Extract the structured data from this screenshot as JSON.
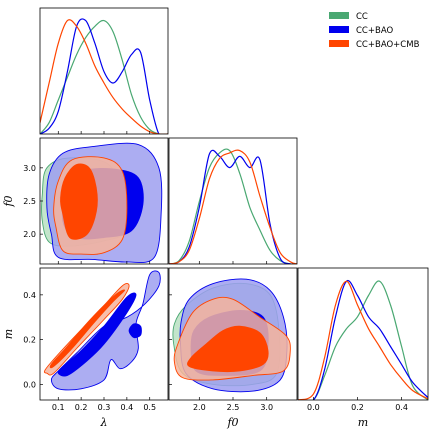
{
  "legend": {
    "items": [
      {
        "name": "CC",
        "color": "#4aa872"
      },
      {
        "name": "CC+BAO",
        "color": "#0000ee"
      },
      {
        "name": "CC+BAO+CMB",
        "color": "#ff4500"
      }
    ]
  },
  "axis_labels": {
    "lambda": "λ",
    "f0": "f0",
    "m": "m"
  },
  "chart_data": {
    "type": "corner",
    "parameters": [
      "λ",
      "f0",
      "m"
    ],
    "x_ticks": {
      "lambda": [
        "0.1",
        "0.2",
        "0.3",
        "0.4",
        "0.5"
      ],
      "f0": [
        "2.0",
        "2.5",
        "3.0"
      ],
      "m": [
        "0.0",
        "0.2",
        "0.4"
      ]
    },
    "y_ticks": {
      "f0": [
        "2.0",
        "2.5",
        "3.0"
      ],
      "m": [
        "0.0",
        "0.2",
        "0.4"
      ]
    },
    "ranges": {
      "lambda": [
        0.02,
        0.58
      ],
      "f0": [
        1.55,
        3.45
      ],
      "m": [
        -0.07,
        0.52
      ]
    },
    "marginals": {
      "lambda": {
        "x": [
          0.02,
          0.06,
          0.1,
          0.14,
          0.18,
          0.22,
          0.26,
          0.3,
          0.34,
          0.38,
          0.42,
          0.46,
          0.5,
          0.54,
          0.58
        ],
        "series": [
          {
            "name": "CC",
            "values": [
              0.0,
              0.1,
              0.3,
              0.5,
              0.7,
              0.85,
              0.95,
              1.0,
              0.9,
              0.65,
              0.35,
              0.15,
              0.04,
              0.0,
              0.0
            ]
          },
          {
            "name": "CC+BAO",
            "values": [
              0.0,
              0.05,
              0.2,
              0.55,
              0.95,
              1.0,
              0.8,
              0.55,
              0.45,
              0.55,
              0.7,
              0.72,
              0.3,
              0.0,
              0.0
            ]
          },
          {
            "name": "CC+BAO+CMB",
            "values": [
              0.1,
              0.45,
              0.8,
              1.0,
              0.95,
              0.8,
              0.6,
              0.45,
              0.32,
              0.22,
              0.14,
              0.07,
              0.02,
              0.0,
              0.0
            ]
          }
        ]
      },
      "f0": {
        "x": [
          1.55,
          1.7,
          1.85,
          2.0,
          2.15,
          2.3,
          2.45,
          2.6,
          2.75,
          2.9,
          3.05,
          3.2,
          3.35,
          3.45
        ],
        "series": [
          {
            "name": "CC",
            "values": [
              0.0,
              0.03,
              0.2,
              0.55,
              0.85,
              0.98,
              1.0,
              0.8,
              0.5,
              0.3,
              0.12,
              0.03,
              0.0,
              0.0
            ]
          },
          {
            "name": "CC+BAO",
            "values": [
              0.0,
              0.02,
              0.15,
              0.5,
              0.97,
              0.95,
              0.85,
              0.95,
              0.85,
              0.92,
              0.35,
              0.05,
              0.0,
              0.0
            ]
          },
          {
            "name": "CC+BAO+CMB",
            "values": [
              0.0,
              0.02,
              0.12,
              0.4,
              0.75,
              0.93,
              0.98,
              1.0,
              0.9,
              0.6,
              0.32,
              0.1,
              0.02,
              0.0
            ]
          }
        ]
      },
      "m": {
        "x": [
          -0.07,
          0.0,
          0.05,
          0.1,
          0.15,
          0.2,
          0.25,
          0.3,
          0.35,
          0.4,
          0.45,
          0.52
        ],
        "series": [
          {
            "name": "CC",
            "values": [
              0.0,
              0.0,
              0.2,
              0.45,
              0.6,
              0.7,
              0.88,
              1.0,
              0.8,
              0.45,
              0.12,
              0.0
            ]
          },
          {
            "name": "CC+BAO",
            "values": [
              0.0,
              0.0,
              0.25,
              0.7,
              1.0,
              0.88,
              0.7,
              0.6,
              0.45,
              0.3,
              0.15,
              0.02
            ]
          },
          {
            "name": "CC+BAO+CMB",
            "values": [
              0.0,
              0.05,
              0.35,
              0.8,
              1.0,
              0.8,
              0.6,
              0.45,
              0.3,
              0.18,
              0.08,
              0.01
            ]
          }
        ]
      }
    },
    "joint": {
      "lambda_f0": {
        "contours": [
          {
            "series": "CC",
            "level": "95%",
            "points": [
              [
                0.03,
                2.2
              ],
              [
                0.06,
                1.88
              ],
              [
                0.15,
                1.82
              ],
              [
                0.3,
                1.9
              ],
              [
                0.4,
                2.05
              ],
              [
                0.38,
                2.55
              ],
              [
                0.32,
                3.05
              ],
              [
                0.15,
                3.15
              ],
              [
                0.05,
                3.0
              ],
              [
                0.03,
                2.6
              ]
            ]
          },
          {
            "series": "CC+BAO",
            "level": "95%",
            "points": [
              [
                0.07,
                2.0
              ],
              [
                0.1,
                1.65
              ],
              [
                0.25,
                1.62
              ],
              [
                0.4,
                1.58
              ],
              [
                0.52,
                1.65
              ],
              [
                0.55,
                2.3
              ],
              [
                0.54,
                3.0
              ],
              [
                0.45,
                3.35
              ],
              [
                0.25,
                3.32
              ],
              [
                0.12,
                3.22
              ],
              [
                0.06,
                2.9
              ],
              [
                0.05,
                2.4
              ]
            ]
          },
          {
            "series": "CC+BAO",
            "level": "68%",
            "points": [
              [
                0.12,
                2.2
              ],
              [
                0.18,
                1.95
              ],
              [
                0.3,
                1.95
              ],
              [
                0.42,
                2.05
              ],
              [
                0.47,
                2.45
              ],
              [
                0.45,
                2.85
              ],
              [
                0.35,
                2.98
              ],
              [
                0.22,
                2.96
              ],
              [
                0.14,
                2.75
              ]
            ]
          },
          {
            "series": "CC+BAO+CMB",
            "level": "95%",
            "points": [
              [
                0.09,
                2.1
              ],
              [
                0.12,
                1.75
              ],
              [
                0.2,
                1.7
              ],
              [
                0.3,
                1.72
              ],
              [
                0.38,
                1.92
              ],
              [
                0.4,
                2.4
              ],
              [
                0.38,
                2.95
              ],
              [
                0.3,
                3.15
              ],
              [
                0.16,
                3.12
              ],
              [
                0.1,
                2.8
              ],
              [
                0.08,
                2.4
              ]
            ]
          },
          {
            "series": "CC+BAO+CMB",
            "level": "68%",
            "points": [
              [
                0.12,
                2.3
              ],
              [
                0.15,
                1.95
              ],
              [
                0.22,
                1.98
              ],
              [
                0.26,
                2.25
              ],
              [
                0.27,
                2.6
              ],
              [
                0.24,
                2.98
              ],
              [
                0.18,
                3.05
              ],
              [
                0.13,
                2.85
              ],
              [
                0.11,
                2.55
              ]
            ]
          }
        ]
      },
      "lambda_m": {
        "contours": [
          {
            "series": "CC+BAO",
            "level": "95%",
            "points": [
              [
                0.07,
                0.02
              ],
              [
                0.1,
                -0.02
              ],
              [
                0.2,
                -0.02
              ],
              [
                0.3,
                0.02
              ],
              [
                0.33,
                0.11
              ],
              [
                0.37,
                0.07
              ],
              [
                0.42,
                0.1
              ],
              [
                0.45,
                0.16
              ],
              [
                0.44,
                0.27
              ],
              [
                0.47,
                0.36
              ],
              [
                0.5,
                0.49
              ],
              [
                0.54,
                0.5
              ],
              [
                0.54,
                0.44
              ],
              [
                0.48,
                0.36
              ],
              [
                0.4,
                0.3
              ],
              [
                0.3,
                0.26
              ],
              [
                0.18,
                0.14
              ],
              [
                0.1,
                0.06
              ]
            ]
          },
          {
            "series": "CC+BAO",
            "level": "68%",
            "points": [
              [
                0.1,
                0.05
              ],
              [
                0.14,
                0.04
              ],
              [
                0.22,
                0.1
              ],
              [
                0.3,
                0.18
              ],
              [
                0.4,
                0.32
              ],
              [
                0.44,
                0.4
              ],
              [
                0.4,
                0.39
              ],
              [
                0.3,
                0.26
              ],
              [
                0.2,
                0.15
              ],
              [
                0.12,
                0.08
              ]
            ]
          },
          {
            "series": "CC+BAO",
            "level": "68%",
            "points": [
              [
                0.41,
                0.24
              ],
              [
                0.43,
                0.21
              ],
              [
                0.46,
                0.22
              ],
              [
                0.46,
                0.26
              ],
              [
                0.43,
                0.27
              ]
            ]
          },
          {
            "series": "CC+BAO+CMB",
            "level": "95%",
            "points": [
              [
                0.05,
                0.05
              ],
              [
                0.08,
                0.05
              ],
              [
                0.18,
                0.16
              ],
              [
                0.3,
                0.29
              ],
              [
                0.38,
                0.38
              ],
              [
                0.41,
                0.44
              ],
              [
                0.38,
                0.44
              ],
              [
                0.28,
                0.33
              ],
              [
                0.15,
                0.19
              ],
              [
                0.07,
                0.1
              ],
              [
                0.04,
                0.06
              ]
            ]
          },
          {
            "series": "CC+BAO+CMB",
            "level": "68%",
            "points": [
              [
                0.08,
                0.08
              ],
              [
                0.16,
                0.16
              ],
              [
                0.26,
                0.28
              ],
              [
                0.34,
                0.37
              ],
              [
                0.39,
                0.42
              ],
              [
                0.35,
                0.4
              ],
              [
                0.24,
                0.29
              ],
              [
                0.14,
                0.17
              ],
              [
                0.07,
                0.09
              ]
            ]
          }
        ]
      },
      "f0_m": {
        "contours": [
          {
            "series": "CC",
            "level": "95%",
            "points": [
              [
                1.62,
                0.18
              ],
              [
                1.75,
                0.05
              ],
              [
                2.2,
                0.0
              ],
              [
                2.8,
                0.0
              ],
              [
                3.15,
                0.05
              ],
              [
                3.18,
                0.25
              ],
              [
                3.05,
                0.4
              ],
              [
                2.7,
                0.45
              ],
              [
                2.2,
                0.43
              ],
              [
                1.8,
                0.35
              ],
              [
                1.63,
                0.27
              ]
            ]
          },
          {
            "series": "CC+BAO",
            "level": "95%",
            "points": [
              [
                1.72,
                0.18
              ],
              [
                1.8,
                0.05
              ],
              [
                2.2,
                -0.02
              ],
              [
                2.8,
                -0.03
              ],
              [
                3.2,
                0.02
              ],
              [
                3.3,
                0.15
              ],
              [
                3.25,
                0.3
              ],
              [
                3.05,
                0.42
              ],
              [
                2.7,
                0.47
              ],
              [
                2.2,
                0.45
              ],
              [
                1.85,
                0.38
              ],
              [
                1.73,
                0.28
              ]
            ]
          },
          {
            "series": "CC+BAO",
            "level": "68%",
            "points": [
              [
                1.88,
                0.15
              ],
              [
                1.95,
                0.06
              ],
              [
                2.3,
                0.04
              ],
              [
                2.9,
                0.06
              ],
              [
                3.02,
                0.18
              ],
              [
                2.95,
                0.3
              ],
              [
                2.6,
                0.33
              ],
              [
                2.15,
                0.3
              ],
              [
                1.92,
                0.24
              ]
            ]
          },
          {
            "series": "CC+BAO+CMB",
            "level": "95%",
            "points": [
              [
                1.63,
                0.1
              ],
              [
                1.75,
                0.03
              ],
              [
                2.2,
                0.02
              ],
              [
                2.8,
                0.04
              ],
              [
                3.25,
                0.06
              ],
              [
                3.35,
                0.15
              ],
              [
                3.28,
                0.22
              ],
              [
                2.9,
                0.3
              ],
              [
                2.5,
                0.38
              ],
              [
                2.2,
                0.38
              ],
              [
                1.9,
                0.32
              ],
              [
                1.68,
                0.18
              ]
            ]
          },
          {
            "series": "CC+BAO+CMB",
            "level": "68%",
            "points": [
              [
                1.85,
                0.08
              ],
              [
                2.2,
                0.06
              ],
              [
                2.6,
                0.06
              ],
              [
                2.95,
                0.09
              ],
              [
                3.02,
                0.15
              ],
              [
                2.9,
                0.23
              ],
              [
                2.6,
                0.26
              ],
              [
                2.35,
                0.24
              ],
              [
                2.1,
                0.18
              ],
              [
                1.88,
                0.12
              ]
            ]
          }
        ]
      }
    },
    "colors": {
      "CC": {
        "fill95": "#b8e0c2",
        "fill68": "#4aa872",
        "line": "#4aa872"
      },
      "CC+BAO": {
        "fill95": "#9d9ff0",
        "fill68": "#0000ee",
        "line": "#0000ee"
      },
      "CC+BAO+CMB": {
        "fill95": "#f6b49c",
        "fill68": "#ff4500",
        "line": "#ff4500"
      }
    }
  }
}
